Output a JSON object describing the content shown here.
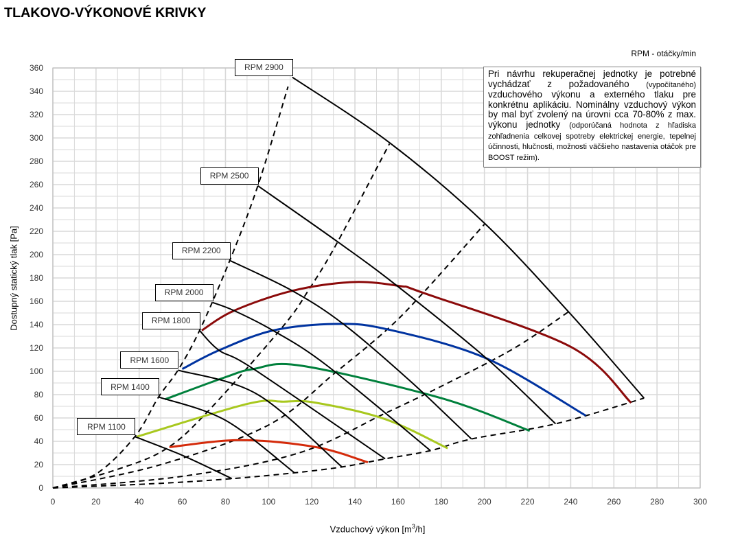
{
  "page_title": "TLAKOVO-VÝKONOVÉ KRIVKY",
  "rpm_unit_label": "RPM - otáčky/min",
  "note": [
    {
      "text": "Pri návrhu rekuperačnej jednotky je potrebné vychádzať z požadovaného ",
      "small": false
    },
    {
      "text": "(vypočítaného)",
      "small": true
    },
    {
      "text": " vzduchového výkonu a externého tlaku pre konkrétnu aplikáciu. Nominálny vzduchový výkon by mal byť zvolený na úrovni cca 70-80% z max. výkonu jednotky ",
      "small": false
    },
    {
      "text": "(odporúčaná hodnota z hľadiska zohľadnenia celkovej spotreby elektrickej energie, tepelnej účinnosti, hlučnosti, možnosti väčšieho nastavenia otáčok pre BOOST režim).",
      "small": true
    }
  ],
  "chart_data": {
    "type": "line",
    "title": "TLAKOVO-VÝKONOVÉ KRIVKY",
    "xlabel": "Vzduchový výkon [m³/h]",
    "ylabel": "Dostupný statický tlak [Pa]",
    "xlim": [
      0,
      300
    ],
    "ylim": [
      0,
      360
    ],
    "x_ticks": [
      0,
      20,
      40,
      60,
      80,
      100,
      120,
      140,
      160,
      180,
      200,
      220,
      240,
      260,
      280,
      300
    ],
    "y_ticks": [
      0,
      20,
      40,
      60,
      80,
      100,
      120,
      140,
      160,
      180,
      200,
      220,
      240,
      260,
      280,
      300,
      320,
      340,
      360
    ],
    "grid": true,
    "rpm_curves": [
      {
        "name": "RPM 2900",
        "color": "#000000",
        "points": [
          [
            111,
            352
          ],
          [
            156,
            296
          ],
          [
            200,
            227
          ],
          [
            239,
            151
          ],
          [
            274,
            77
          ]
        ]
      },
      {
        "name": "RPM 2500",
        "color": "#000000",
        "points": [
          [
            95,
            259
          ],
          [
            132,
            211
          ],
          [
            159,
            174
          ],
          [
            201,
            111
          ],
          [
            233,
            55
          ]
        ]
      },
      {
        "name": "RPM 2200",
        "color": "#000000",
        "points": [
          [
            82,
            195
          ],
          [
            111,
            169
          ],
          [
            135,
            140
          ],
          [
            166,
            91
          ],
          [
            194,
            42
          ]
        ]
      },
      {
        "name": "RPM 2000",
        "color": "#000000",
        "points": [
          [
            74,
            159
          ],
          [
            84,
            152
          ],
          [
            102,
            135
          ],
          [
            127,
            105
          ],
          [
            175,
            32
          ]
        ]
      },
      {
        "name": "RPM 1800",
        "color": "#000000",
        "points": [
          [
            68,
            135
          ],
          [
            77,
            118
          ],
          [
            93,
            102
          ],
          [
            154,
            25
          ]
        ]
      },
      {
        "name": "RPM 1600",
        "color": "#000000",
        "points": [
          [
            58,
            101
          ],
          [
            95,
            80
          ],
          [
            134,
            18
          ]
        ]
      },
      {
        "name": "RPM 1400",
        "color": "#000000",
        "points": [
          [
            49,
            78
          ],
          [
            80,
            58
          ],
          [
            112,
            13
          ]
        ]
      },
      {
        "name": "RPM 1100",
        "color": "#000000",
        "points": [
          [
            38,
            44
          ],
          [
            60,
            28
          ],
          [
            83,
            8
          ]
        ]
      }
    ],
    "system_curves": [
      {
        "color": "#8B0A0A",
        "points": [
          [
            69,
            135
          ],
          [
            84,
            152
          ],
          [
            111,
            169
          ],
          [
            139,
            176.5
          ],
          [
            161,
            173
          ],
          [
            172,
            167
          ],
          [
            240,
            121
          ],
          [
            268,
            73
          ]
        ]
      },
      {
        "color": "#0033A0",
        "points": [
          [
            60,
            102
          ],
          [
            77,
            118
          ],
          [
            102,
            135
          ],
          [
            131,
            140.6
          ],
          [
            155,
            136
          ],
          [
            201,
            111
          ],
          [
            247,
            62
          ]
        ]
      },
      {
        "color": "#00803C",
        "points": [
          [
            52,
            76
          ],
          [
            80,
            95
          ],
          [
            93,
            102
          ],
          [
            115.5,
            104.7
          ],
          [
            180,
            77
          ],
          [
            221,
            49
          ]
        ]
      },
      {
        "color": "#A8C81E",
        "points": [
          [
            39,
            44
          ],
          [
            90,
            72
          ],
          [
            107,
            74
          ],
          [
            122,
            73
          ],
          [
            154,
            59
          ],
          [
            183,
            34
          ]
        ]
      },
      {
        "color": "#D42A0A",
        "points": [
          [
            54,
            35
          ],
          [
            87,
            41
          ],
          [
            122,
            35
          ],
          [
            146,
            22
          ]
        ]
      }
    ],
    "dashed_lines": [
      {
        "points": [
          [
            0,
            0
          ],
          [
            20,
            12
          ],
          [
            38,
            44
          ],
          [
            49,
            78
          ],
          [
            58,
            101
          ],
          [
            68,
            135
          ],
          [
            82,
            195
          ],
          [
            95,
            259
          ],
          [
            109,
            344
          ]
        ]
      },
      {
        "points": [
          [
            0,
            0
          ],
          [
            30,
            16
          ],
          [
            52,
            33
          ],
          [
            71,
            64
          ],
          [
            106,
            137
          ],
          [
            119,
            171
          ],
          [
            132,
            211
          ],
          [
            156,
            295
          ]
        ]
      },
      {
        "points": [
          [
            0,
            0
          ],
          [
            50,
            20
          ],
          [
            100,
            54
          ],
          [
            131,
            99
          ],
          [
            155,
            136
          ],
          [
            172,
            168
          ],
          [
            200,
            226
          ]
        ]
      },
      {
        "points": [
          [
            0,
            0
          ],
          [
            60,
            10
          ],
          [
            114,
            30
          ],
          [
            154,
            64
          ],
          [
            182,
            89
          ],
          [
            214,
            120
          ],
          [
            239,
            151
          ]
        ]
      },
      {
        "points": [
          [
            0,
            0
          ],
          [
            50,
            4
          ],
          [
            83,
            8
          ],
          [
            112,
            13
          ],
          [
            134,
            18
          ],
          [
            154,
            25
          ],
          [
            175,
            32
          ],
          [
            194,
            42
          ],
          [
            233,
            55
          ],
          [
            274,
            77
          ]
        ]
      }
    ]
  }
}
